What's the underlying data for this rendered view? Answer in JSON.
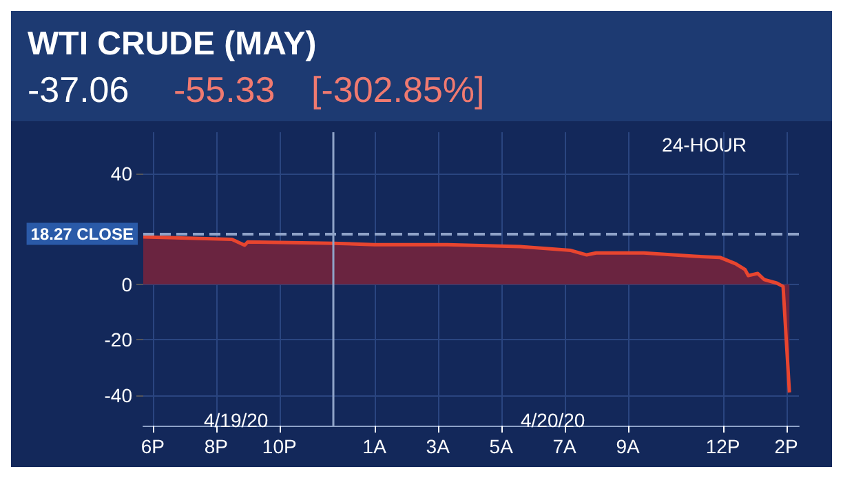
{
  "chart_data": {
    "type": "area",
    "title": "WTI CRUDE (MAY)",
    "subtitle": "-37.06",
    "annotations": [
      "-55.33",
      "[-302.85%]",
      "24-HOUR",
      "4/19/20",
      "4/20/20"
    ],
    "x": [
      "--04-19T17:42",
      "--04-19T20:30",
      "--04-19T20:54",
      "--04-19T21:00",
      "--04-19T23:42",
      "--04-20T01:00",
      "--04-20T03:18",
      "--04-20T05:36",
      "--04-20T07:12",
      "--04-20T07:42",
      "--04-20T08:00",
      "--04-20T09:30",
      "--04-20T11:06",
      "--04-20T11:54",
      "--04-20T12:24",
      "--04-20T12:42",
      "--04-20T12:48",
      "--04-20T13:06",
      "--04-20T13:18",
      "--04-20T13:42",
      "--04-20T13:54",
      "--04-20T14:06"
    ],
    "series": [
      {
        "color": "#e8452f",
        "values": [
          17.2,
          16.3,
          14.2,
          15.4,
          14.9,
          14.4,
          14.4,
          13.7,
          12.3,
          10.7,
          11.4,
          11.4,
          10.2,
          9.8,
          7.5,
          5.4,
          3.2,
          4.0,
          1.8,
          0.5,
          -0.7,
          -39
        ]
      }
    ],
    "xlim": [
      "--04-19T17:42",
      "--04-20T14:24"
    ],
    "xticks": [
      {
        "value": "--04-19T18:00",
        "label": "6P"
      },
      {
        "value": "--04-19T20:00",
        "label": "8P"
      },
      {
        "value": "--04-19T22:00",
        "label": "10P"
      },
      {
        "value": "--04-20T01:00",
        "label": "1A"
      },
      {
        "value": "--04-20T03:00",
        "label": "3A"
      },
      {
        "value": "--04-20T05:00",
        "label": "5A"
      },
      {
        "value": "--04-20T07:00",
        "label": "7A"
      },
      {
        "value": "--04-20T09:00",
        "label": "9A"
      },
      {
        "value": "--04-20T12:00",
        "label": "12P"
      },
      {
        "value": "--04-20T14:00",
        "label": "2P"
      }
    ],
    "ylim": [
      -51,
      55
    ],
    "yticks": [
      -40,
      -20,
      0,
      40
    ],
    "ref_lines": [
      {
        "axis": "y",
        "value": 18.27,
        "label": "18.27 CLOSE",
        "line_style": "dashed",
        "color": "#8fa3c8"
      },
      {
        "axis": "x",
        "value": "--04-19T23:42",
        "color": "#8fa3c8"
      }
    ],
    "grid": true,
    "marker": "none",
    "line_style": "solid"
  }
}
